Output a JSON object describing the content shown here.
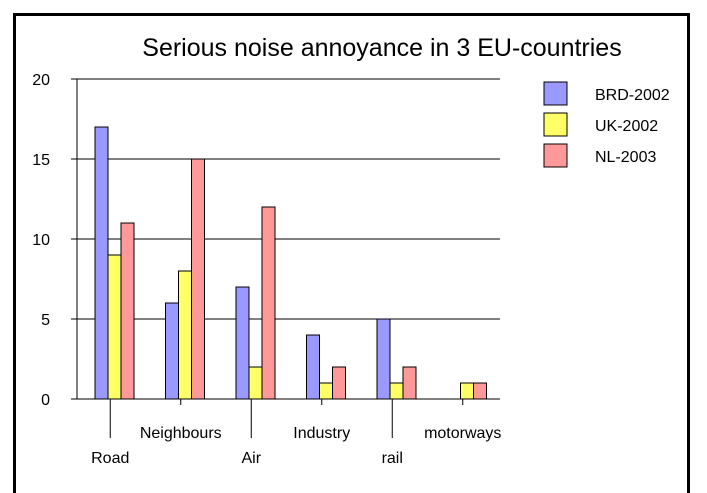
{
  "chart_data": {
    "type": "bar",
    "title": "Serious noise annoyance in 3 EU-countries",
    "xlabel": "",
    "ylabel": "",
    "ylim": [
      0,
      20
    ],
    "yticks": [
      0,
      5,
      10,
      15,
      20
    ],
    "grid": true,
    "legend_position": "right",
    "categories": [
      "Road",
      "Neighbours",
      "Air",
      "Industry",
      "rail",
      "motorways"
    ],
    "series": [
      {
        "name": "BRD-2002",
        "color": "#9999ff",
        "values": [
          17,
          6,
          7,
          4,
          5,
          0
        ]
      },
      {
        "name": "UK-2002",
        "color": "#ffff66",
        "values": [
          9,
          8,
          2,
          1,
          1,
          1
        ]
      },
      {
        "name": "NL-2003",
        "color": "#ff9999",
        "values": [
          11,
          15,
          12,
          2,
          2,
          1
        ]
      }
    ]
  }
}
